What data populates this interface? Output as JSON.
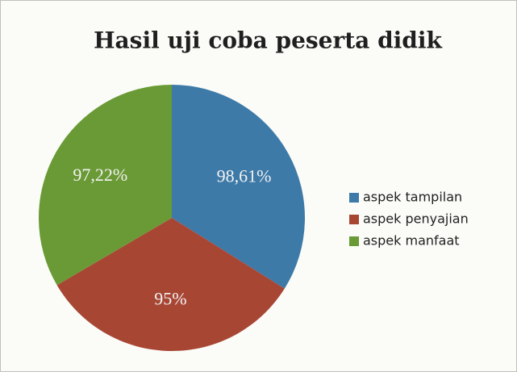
{
  "chart_data": {
    "type": "pie",
    "title": "Hasil uji coba peserta didik",
    "categories": [
      "aspek tampilan",
      "aspek penyajian",
      "aspek manfaat"
    ],
    "values": [
      98.61,
      95,
      97.22
    ],
    "value_labels": [
      "98,61%",
      "95%",
      "97,22%"
    ],
    "colors": [
      "#3d7aa8",
      "#a84634",
      "#6a9a35"
    ],
    "legend": "right"
  }
}
